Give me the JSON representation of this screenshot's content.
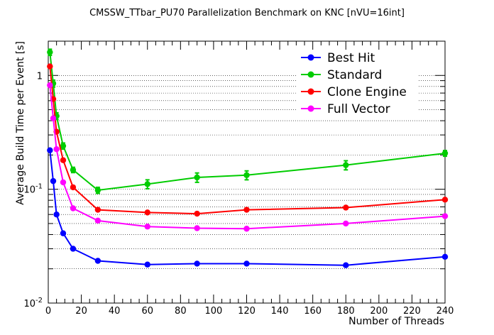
{
  "chart_data": {
    "type": "line",
    "title": "CMSSW_TTbar_PU70 Parallelization Benchmark on KNC [nVU=16int]",
    "xlabel": "Number of Threads",
    "ylabel": "Average Build Time per Event [s]",
    "xlim": [
      0,
      240
    ],
    "ylim": [
      0.01,
      2.0
    ],
    "yscale": "log",
    "grid": "horizontal dotted",
    "legend_position": "top-right",
    "x_ticks": [
      0,
      20,
      40,
      60,
      80,
      100,
      120,
      140,
      160,
      180,
      200,
      220,
      240
    ],
    "y_ticks": [
      {
        "value": 0.01,
        "mantissa": "10",
        "exponent": "-2"
      },
      {
        "value": 0.1,
        "mantissa": "10",
        "exponent": "-1"
      },
      {
        "value": 1,
        "mantissa": "1",
        "exponent": ""
      }
    ],
    "series": [
      {
        "name": "Best Hit",
        "color": "#0000ff",
        "x": [
          1,
          3,
          5,
          9,
          15,
          30,
          60,
          90,
          120,
          180,
          240
        ],
        "y": [
          0.22,
          0.118,
          0.06,
          0.041,
          0.03,
          0.0235,
          0.0218,
          0.0222,
          0.0222,
          0.0215,
          0.0255
        ],
        "err": [
          0,
          0,
          0,
          0,
          0,
          0,
          0,
          0,
          0,
          0,
          0
        ]
      },
      {
        "name": "Standard",
        "color": "#00cc00",
        "x": [
          1,
          3,
          5,
          9,
          15,
          30,
          60,
          90,
          120,
          180,
          240
        ],
        "y": [
          1.6,
          0.85,
          0.44,
          0.24,
          0.148,
          0.098,
          0.111,
          0.127,
          0.133,
          0.163,
          0.207
        ],
        "err": [
          0.1,
          0.06,
          0.03,
          0.015,
          0.008,
          0.006,
          0.01,
          0.012,
          0.012,
          0.015,
          0.012
        ]
      },
      {
        "name": "Clone Engine",
        "color": "#ff0000",
        "x": [
          1,
          3,
          5,
          9,
          15,
          30,
          60,
          90,
          120,
          180,
          240
        ],
        "y": [
          1.2,
          0.62,
          0.32,
          0.18,
          0.104,
          0.066,
          0.0625,
          0.061,
          0.066,
          0.069,
          0.081
        ],
        "err": [
          0,
          0,
          0,
          0,
          0,
          0,
          0,
          0,
          0,
          0,
          0
        ]
      },
      {
        "name": "Full Vector",
        "color": "#ff00ff",
        "x": [
          1,
          3,
          5,
          9,
          15,
          30,
          60,
          90,
          120,
          180,
          240
        ],
        "y": [
          0.82,
          0.42,
          0.225,
          0.115,
          0.068,
          0.053,
          0.047,
          0.0455,
          0.045,
          0.05,
          0.058
        ],
        "err": [
          0,
          0,
          0,
          0,
          0,
          0,
          0,
          0,
          0,
          0,
          0
        ]
      }
    ]
  }
}
